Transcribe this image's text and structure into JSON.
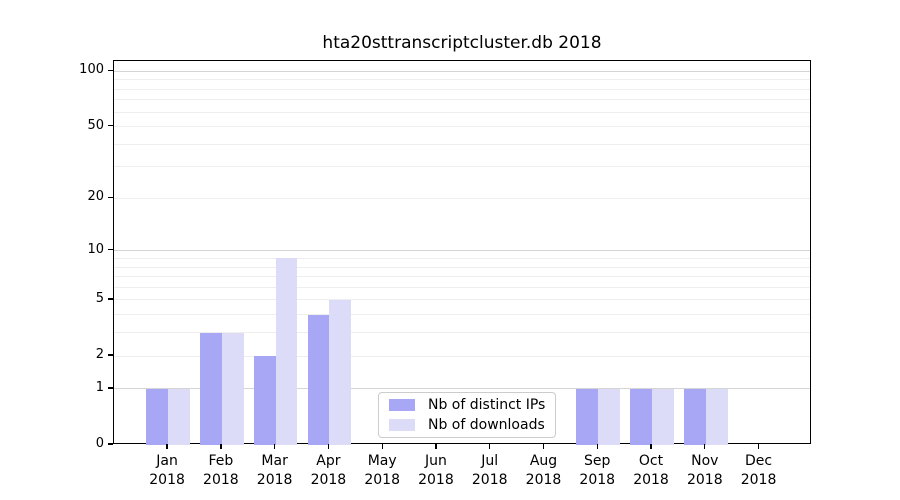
{
  "title": "hta20sttranscriptcluster.db 2018",
  "chart_data": {
    "type": "bar",
    "title": "hta20sttranscriptcluster.db 2018",
    "categories": [
      "Jan",
      "Feb",
      "Mar",
      "Apr",
      "May",
      "Jun",
      "Jul",
      "Aug",
      "Sep",
      "Oct",
      "Nov",
      "Dec"
    ],
    "year_label": "2018",
    "series": [
      {
        "name": "Nb of distinct IPs",
        "color": "#a7a7f6",
        "values": [
          1,
          3,
          2,
          4,
          0,
          0,
          0,
          0,
          1,
          1,
          1,
          0
        ]
      },
      {
        "name": "Nb of downloads",
        "color": "#dcdcf8",
        "values": [
          1,
          3,
          9,
          5,
          0,
          0,
          0,
          0,
          1,
          1,
          1,
          0
        ]
      }
    ],
    "xlabel": "",
    "ylabel": "",
    "yscale": "log1p",
    "ylim": [
      0,
      114
    ],
    "yticks": [
      0,
      1,
      2,
      5,
      10,
      20,
      50,
      100
    ],
    "grid": {
      "on": true,
      "major_values": [
        1,
        10,
        100
      ],
      "minor_values": [
        2,
        3,
        4,
        5,
        6,
        7,
        8,
        9,
        20,
        30,
        40,
        50,
        60,
        70,
        80,
        90
      ]
    },
    "legend": {
      "position": "bottom-center",
      "entries": [
        "Nb of distinct IPs",
        "Nb of downloads"
      ]
    }
  },
  "colors": {
    "distinct_ips_bar": "#a7a7f6",
    "downloads_bar": "#dcdcf8",
    "grid_major": "#d5d5d5",
    "grid_minor": "#eeeeee",
    "axis": "#000000",
    "legend_border": "#cccccc",
    "background": "#ffffff"
  }
}
